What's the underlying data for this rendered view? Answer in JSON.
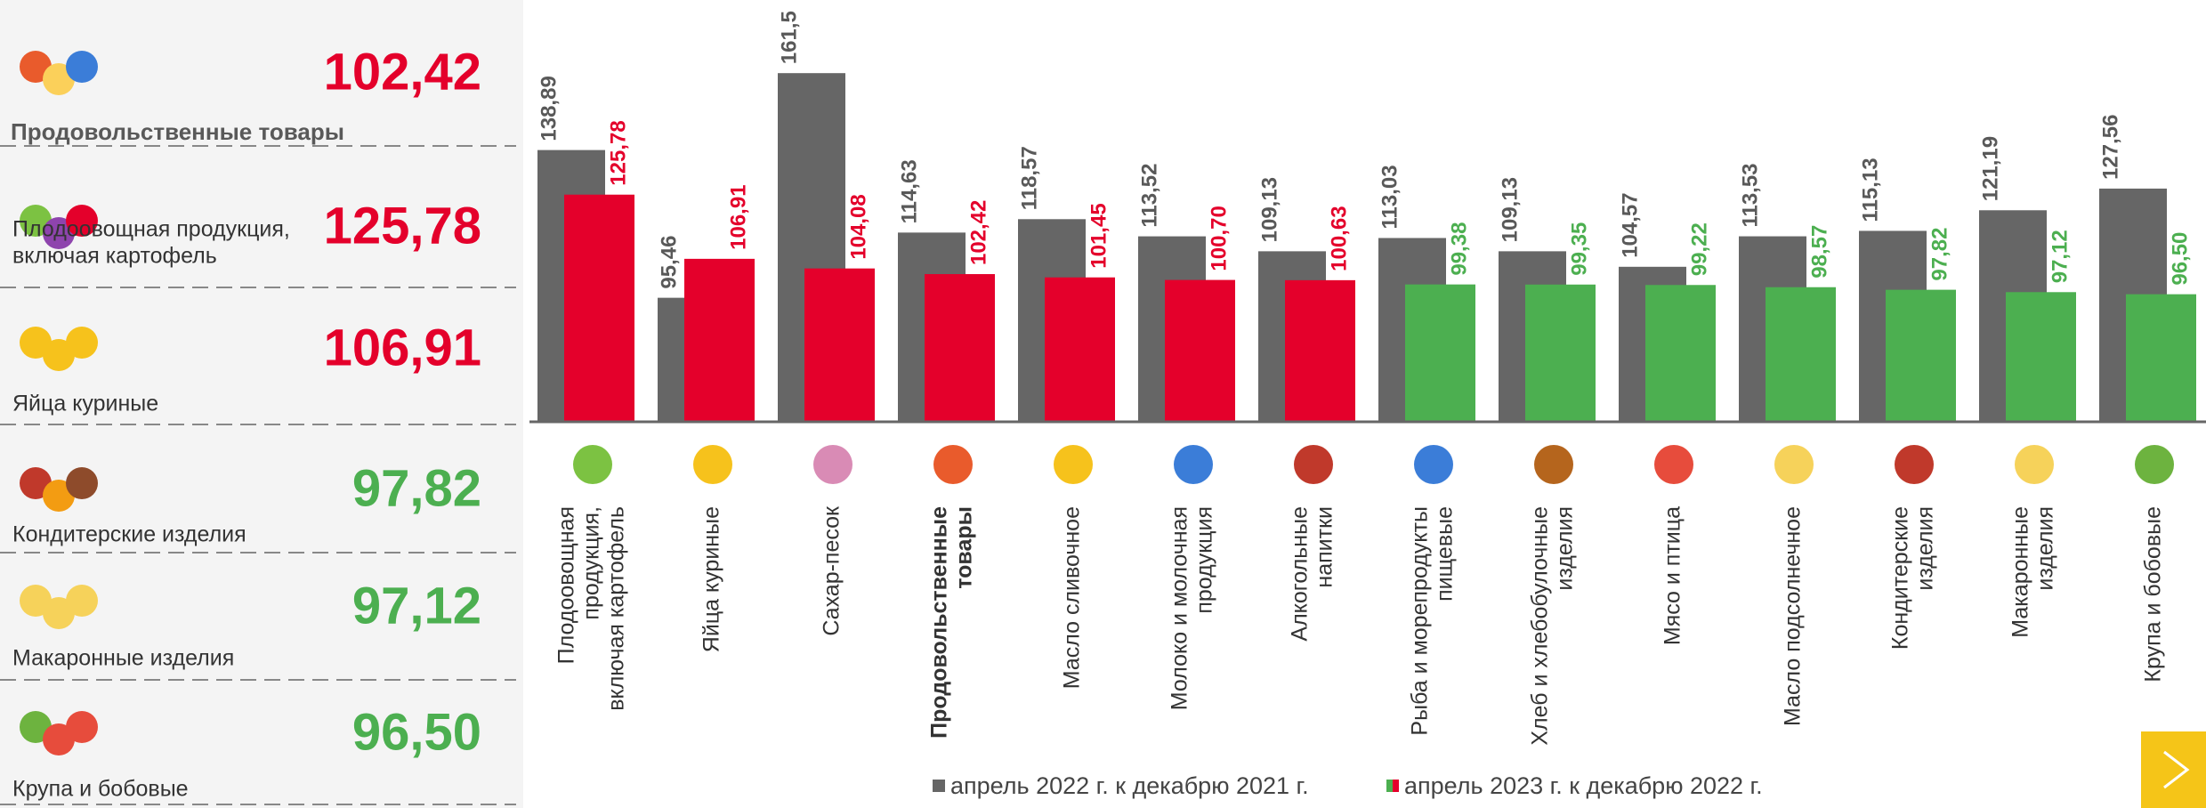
{
  "summary": [
    {
      "label": [
        "Продовольственные товары"
      ],
      "value": "102,42",
      "color": "#e4002b"
    },
    {
      "label": [
        "Плодоовощная продукция,",
        "включая картофель"
      ],
      "value": "125,78",
      "color": "#e4002b"
    },
    {
      "label": [
        "Яйца куриные"
      ],
      "value": "106,91",
      "color": "#e4002b"
    },
    {
      "label": [
        "Кондитерские изделия"
      ],
      "value": "97,82",
      "color": "#4caf50"
    },
    {
      "label": [
        "Макаронные изделия"
      ],
      "value": "97,12",
      "color": "#4caf50"
    },
    {
      "label": [
        "Крупа и бобовые"
      ],
      "value": "96,50",
      "color": "#4caf50"
    }
  ],
  "chart_data": {
    "type": "bar",
    "categories": [
      [
        "Плодоовощная",
        "продукция,",
        "включая картофель"
      ],
      [
        "Яйца куриные"
      ],
      [
        "Сахар-песок"
      ],
      [
        "Продовольственные",
        "товары"
      ],
      [
        "Масло сливочное"
      ],
      [
        "Молоко и молочная",
        "продукция"
      ],
      [
        "Алкогольные",
        "напитки"
      ],
      [
        "Рыба и морепродукты",
        "пищевые"
      ],
      [
        "Хлеб и хлебобулочные",
        "изделия"
      ],
      [
        "Мясо и птица"
      ],
      [
        "Масло подсолнечное"
      ],
      [
        "Кондитерские",
        "изделия"
      ],
      [
        "Макаронные",
        "изделия"
      ],
      [
        "Крупа и бобовые"
      ]
    ],
    "series": [
      {
        "name": "апрель 2022 г. к декабрю 2021 г.",
        "color": "#666666",
        "values": [
          138.89,
          95.46,
          161.5,
          114.63,
          118.57,
          113.52,
          109.13,
          113.03,
          109.13,
          104.57,
          113.53,
          115.13,
          121.19,
          127.56
        ],
        "value_labels": [
          "138,89",
          "95,46",
          "161,5",
          "114,63",
          "118,57",
          "113,52",
          "109,13",
          "113,03",
          "109,13",
          "104,57",
          "113,53",
          "115,13",
          "121,19",
          "127,56"
        ]
      },
      {
        "name": "апрель 2023 г. к  декабрю 2022 г.",
        "color": "#e4002b",
        "colors": [
          "#e4002b",
          "#e4002b",
          "#e4002b",
          "#e4002b",
          "#e4002b",
          "#e4002b",
          "#e4002b",
          "#4caf50",
          "#4caf50",
          "#4caf50",
          "#4caf50",
          "#4caf50",
          "#4caf50",
          "#4caf50"
        ],
        "values": [
          125.78,
          106.91,
          104.08,
          102.42,
          101.45,
          100.7,
          100.63,
          99.38,
          99.35,
          99.22,
          98.57,
          97.82,
          97.12,
          96.5
        ],
        "value_labels": [
          "125,78",
          "106,91",
          "104,08",
          "102,42",
          "101,45",
          "100,70",
          "100,63",
          "99,38",
          "99,35",
          "99,22",
          "98,57",
          "97,82",
          "97,12",
          "96,50"
        ]
      }
    ],
    "ylim": [
      59,
      183
    ]
  }
}
